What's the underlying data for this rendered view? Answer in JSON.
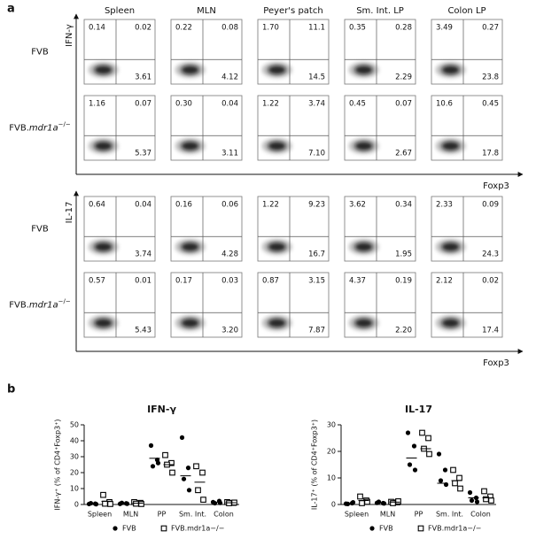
{
  "panel_a": {
    "label": "a",
    "columns": [
      "Spleen",
      "MLN",
      "Peyer's patch",
      "Sm. Int. LP",
      "Colon LP"
    ],
    "x_axis_label": "Foxp3",
    "blocks": [
      {
        "y_axis_label": "IFN-γ",
        "rows": [
          {
            "label": {
              "base": "FVB"
            },
            "cells": [
              [
                "0.14",
                "0.02",
                "3.61"
              ],
              [
                "0.22",
                "0.08",
                "4.12"
              ],
              [
                "1.70",
                "11.1",
                "14.5"
              ],
              [
                "0.35",
                "0.28",
                "2.29"
              ],
              [
                "3.49",
                "0.27",
                "23.8"
              ]
            ]
          },
          {
            "label": {
              "base": "FVB.",
              "gene": "mdr1a",
              "sup": "−/−"
            },
            "cells": [
              [
                "1.16",
                "0.07",
                "5.37"
              ],
              [
                "0.30",
                "0.04",
                "3.11"
              ],
              [
                "1.22",
                "3.74",
                "7.10"
              ],
              [
                "0.45",
                "0.07",
                "2.67"
              ],
              [
                "10.6",
                "0.45",
                "17.8"
              ]
            ]
          }
        ]
      },
      {
        "y_axis_label": "IL-17",
        "rows": [
          {
            "label": {
              "base": "FVB"
            },
            "cells": [
              [
                "0.64",
                "0.04",
                "3.74"
              ],
              [
                "0.16",
                "0.06",
                "4.28"
              ],
              [
                "1.22",
                "9.23",
                "16.7"
              ],
              [
                "3.62",
                "0.34",
                "1.95"
              ],
              [
                "2.33",
                "0.09",
                "24.3"
              ]
            ]
          },
          {
            "label": {
              "base": "FVB.",
              "gene": "mdr1a",
              "sup": "−/−"
            },
            "cells": [
              [
                "0.57",
                "0.01",
                "5.43"
              ],
              [
                "0.17",
                "0.03",
                "3.20"
              ],
              [
                "0.87",
                "3.15",
                "7.87"
              ],
              [
                "4.37",
                "0.19",
                "2.20"
              ],
              [
                "2.12",
                "0.02",
                "17.4"
              ]
            ]
          }
        ]
      }
    ]
  },
  "panel_b_label": "b",
  "chart_data": [
    {
      "type": "scatter",
      "title": "IFN-γ",
      "y_label": "IFN-γ⁺ (% of CD4⁺Foxp3⁺)",
      "categories": [
        "Spleen",
        "MLN",
        "PP",
        "Sm. Int.",
        "Colon"
      ],
      "ylim": [
        0,
        50
      ],
      "yticks": [
        0,
        10,
        20,
        30,
        40,
        50
      ],
      "series": [
        {
          "name": "FVB",
          "color": "#000000",
          "marker": "circle",
          "values": [
            [
              0.3,
              0.5,
              0.8,
              0.2
            ],
            [
              0.4,
              0.7,
              1,
              0.5
            ],
            [
              37,
              28,
              24,
              26
            ],
            [
              42,
              23,
              16,
              9
            ],
            [
              1.5,
              2.2,
              0.8,
              1
            ]
          ],
          "means": [
            0.4,
            0.6,
            29,
            18,
            1.3
          ]
        },
        {
          "name": "FVB.mdr1a−/−",
          "color": "#000000",
          "marker": "square",
          "values": [
            [
              6,
              1.5,
              0.5,
              0.3
            ],
            [
              1.5,
              1,
              0.5,
              0.3
            ],
            [
              31,
              26,
              25,
              20
            ],
            [
              24,
              20,
              9,
              3
            ],
            [
              1.5,
              1,
              0.8,
              1.2
            ]
          ],
          "means": [
            2,
            0.8,
            25,
            14,
            1.1
          ]
        }
      ]
    },
    {
      "type": "scatter",
      "title": "IL-17",
      "y_label": "IL-17⁺ (% of CD4⁺Foxp3⁺)",
      "categories": [
        "Spleen",
        "MLN",
        "PP",
        "Sm. Int.",
        "Colon"
      ],
      "ylim": [
        0,
        30
      ],
      "yticks": [
        0,
        10,
        20,
        30
      ],
      "series": [
        {
          "name": "FVB",
          "color": "#000000",
          "marker": "circle",
          "values": [
            [
              0.3,
              0.5,
              0.2,
              0.8
            ],
            [
              0.6,
              0.5,
              1,
              0.4
            ],
            [
              27,
              22,
              15,
              13
            ],
            [
              19,
              13,
              9,
              7.5
            ],
            [
              4.5,
              2.5,
              1.5,
              1
            ]
          ],
          "means": [
            0.5,
            0.6,
            17.5,
            8,
            2.5
          ]
        },
        {
          "name": "FVB.mdr1a−/−",
          "color": "#000000",
          "marker": "square",
          "values": [
            [
              3,
              1.5,
              0.5,
              1
            ],
            [
              1,
              0.8,
              0.5,
              1.2
            ],
            [
              27,
              25,
              21,
              19
            ],
            [
              13,
              10,
              8,
              6
            ],
            [
              5,
              3,
              2,
              1.5
            ]
          ],
          "means": [
            1.5,
            0.9,
            21,
            9,
            2.5
          ]
        }
      ]
    }
  ]
}
